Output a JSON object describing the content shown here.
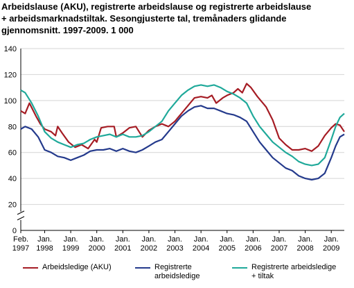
{
  "chart_data": {
    "type": "line",
    "title_lines": [
      "Arbeidslause (AKU), registrerte arbeidslause og registrerte arbeidslause",
      "+ arbeidsmarknadstiltak. Sesongjusterte tal, tremånaders glidande",
      "gjennomsnitt. 1997-2009. 1 000"
    ],
    "ylim": [
      0,
      140
    ],
    "y_ticks": [
      0,
      20,
      40,
      60,
      80,
      100,
      120,
      140
    ],
    "x_range": [
      "1997-02",
      "2009-07"
    ],
    "x_ticks": [
      {
        "line1": "Feb.",
        "line2": "1997",
        "x": "1997-02"
      },
      {
        "line1": "Jan.",
        "line2": "1998",
        "x": "1998-01"
      },
      {
        "line1": "Jan.",
        "line2": "1999",
        "x": "1999-01"
      },
      {
        "line1": "Jan.",
        "line2": "2000",
        "x": "2000-01"
      },
      {
        "line1": "Jan.",
        "line2": "2001",
        "x": "2001-01"
      },
      {
        "line1": "Jan.",
        "line2": "2002",
        "x": "2002-01"
      },
      {
        "line1": "Jan.",
        "line2": "2003",
        "x": "2003-01"
      },
      {
        "line1": "Jan.",
        "line2": "2004",
        "x": "2004-01"
      },
      {
        "line1": "Jan.",
        "line2": "2005",
        "x": "2005-01"
      },
      {
        "line1": "Jan.",
        "line2": "2006",
        "x": "2006-01"
      },
      {
        "line1": "Jan.",
        "line2": "2007",
        "x": "2007-01"
      },
      {
        "line1": "Jan.",
        "line2": "2008",
        "x": "2008-01"
      },
      {
        "line1": "Jan.",
        "line2": "2009",
        "x": "2009-01"
      }
    ],
    "grid": "horizontal",
    "axis_break": true,
    "legend_position": "bottom",
    "series": [
      {
        "name": "Arbeidsledige (AKU)",
        "color": "#a51c24",
        "points": [
          [
            "1997-02",
            92
          ],
          [
            "1997-04",
            90
          ],
          [
            "1997-06",
            98
          ],
          [
            "1997-09",
            88
          ],
          [
            "1997-11",
            82
          ],
          [
            "1998-01",
            78
          ],
          [
            "1998-04",
            76
          ],
          [
            "1998-06",
            73
          ],
          [
            "1998-07",
            80
          ],
          [
            "1998-09",
            75
          ],
          [
            "1998-12",
            68
          ],
          [
            "1999-03",
            64
          ],
          [
            "1999-06",
            66
          ],
          [
            "1999-09",
            63
          ],
          [
            "1999-12",
            70
          ],
          [
            "2000-01",
            68
          ],
          [
            "2000-03",
            79
          ],
          [
            "2000-06",
            80
          ],
          [
            "2000-09",
            80
          ],
          [
            "2000-10",
            72
          ],
          [
            "2001-01",
            75
          ],
          [
            "2001-04",
            79
          ],
          [
            "2001-07",
            80
          ],
          [
            "2001-10",
            72
          ],
          [
            "2002-01",
            77
          ],
          [
            "2002-04",
            80
          ],
          [
            "2002-07",
            82
          ],
          [
            "2002-10",
            80
          ],
          [
            "2003-01",
            84
          ],
          [
            "2003-04",
            90
          ],
          [
            "2003-07",
            96
          ],
          [
            "2003-10",
            102
          ],
          [
            "2004-01",
            103
          ],
          [
            "2004-04",
            102
          ],
          [
            "2004-06",
            104
          ],
          [
            "2004-08",
            98
          ],
          [
            "2004-11",
            102
          ],
          [
            "2005-01",
            104
          ],
          [
            "2005-04",
            106
          ],
          [
            "2005-06",
            109
          ],
          [
            "2005-08",
            106
          ],
          [
            "2005-10",
            113
          ],
          [
            "2005-12",
            110
          ],
          [
            "2006-03",
            103
          ],
          [
            "2006-07",
            95
          ],
          [
            "2006-10",
            85
          ],
          [
            "2007-01",
            71
          ],
          [
            "2007-04",
            66
          ],
          [
            "2007-07",
            62
          ],
          [
            "2007-10",
            62
          ],
          [
            "2008-01",
            63
          ],
          [
            "2008-04",
            61
          ],
          [
            "2008-07",
            65
          ],
          [
            "2008-10",
            73
          ],
          [
            "2009-01",
            79
          ],
          [
            "2009-03",
            82
          ],
          [
            "2009-05",
            81
          ],
          [
            "2009-07",
            76
          ]
        ]
      },
      {
        "name": "Registrerte arbeidsledige",
        "color": "#243a8c",
        "points": [
          [
            "1997-02",
            78
          ],
          [
            "1997-04",
            80
          ],
          [
            "1997-07",
            78
          ],
          [
            "1997-10",
            72
          ],
          [
            "1998-01",
            62
          ],
          [
            "1998-04",
            60
          ],
          [
            "1998-07",
            57
          ],
          [
            "1998-10",
            56
          ],
          [
            "1999-01",
            54
          ],
          [
            "1999-04",
            56
          ],
          [
            "1999-07",
            58
          ],
          [
            "1999-10",
            61
          ],
          [
            "2000-01",
            62
          ],
          [
            "2000-04",
            62
          ],
          [
            "2000-07",
            63
          ],
          [
            "2000-10",
            61
          ],
          [
            "2001-01",
            63
          ],
          [
            "2001-04",
            61
          ],
          [
            "2001-07",
            60
          ],
          [
            "2001-10",
            62
          ],
          [
            "2002-01",
            65
          ],
          [
            "2002-04",
            68
          ],
          [
            "2002-07",
            70
          ],
          [
            "2002-10",
            76
          ],
          [
            "2003-01",
            82
          ],
          [
            "2003-04",
            88
          ],
          [
            "2003-07",
            92
          ],
          [
            "2003-10",
            95
          ],
          [
            "2004-01",
            96
          ],
          [
            "2004-04",
            94
          ],
          [
            "2004-07",
            94
          ],
          [
            "2004-10",
            92
          ],
          [
            "2005-01",
            90
          ],
          [
            "2005-04",
            89
          ],
          [
            "2005-07",
            87
          ],
          [
            "2005-10",
            84
          ],
          [
            "2006-01",
            76
          ],
          [
            "2006-04",
            68
          ],
          [
            "2006-07",
            62
          ],
          [
            "2006-10",
            56
          ],
          [
            "2007-01",
            52
          ],
          [
            "2007-04",
            48
          ],
          [
            "2007-07",
            46
          ],
          [
            "2007-10",
            42
          ],
          [
            "2008-01",
            40
          ],
          [
            "2008-04",
            39
          ],
          [
            "2008-07",
            40
          ],
          [
            "2008-10",
            44
          ],
          [
            "2009-01",
            56
          ],
          [
            "2009-03",
            65
          ],
          [
            "2009-05",
            72
          ],
          [
            "2009-07",
            74
          ]
        ]
      },
      {
        "name": "Registrerte arbeidsledige + tiltak",
        "color": "#1fa99a",
        "points": [
          [
            "1997-02",
            108
          ],
          [
            "1997-04",
            106
          ],
          [
            "1997-07",
            98
          ],
          [
            "1997-10",
            88
          ],
          [
            "1998-01",
            76
          ],
          [
            "1998-04",
            71
          ],
          [
            "1998-07",
            68
          ],
          [
            "1998-10",
            66
          ],
          [
            "1999-01",
            64
          ],
          [
            "1999-04",
            66
          ],
          [
            "1999-07",
            67
          ],
          [
            "1999-10",
            70
          ],
          [
            "2000-01",
            72
          ],
          [
            "2000-04",
            73
          ],
          [
            "2000-07",
            74
          ],
          [
            "2000-10",
            72
          ],
          [
            "2001-01",
            74
          ],
          [
            "2001-04",
            72
          ],
          [
            "2001-07",
            72
          ],
          [
            "2001-10",
            73
          ],
          [
            "2002-01",
            76
          ],
          [
            "2002-04",
            80
          ],
          [
            "2002-07",
            84
          ],
          [
            "2002-10",
            92
          ],
          [
            "2003-01",
            98
          ],
          [
            "2003-04",
            104
          ],
          [
            "2003-07",
            108
          ],
          [
            "2003-10",
            111
          ],
          [
            "2004-01",
            112
          ],
          [
            "2004-04",
            111
          ],
          [
            "2004-07",
            112
          ],
          [
            "2004-10",
            110
          ],
          [
            "2005-01",
            107
          ],
          [
            "2005-04",
            105
          ],
          [
            "2005-07",
            102
          ],
          [
            "2005-10",
            98
          ],
          [
            "2006-01",
            88
          ],
          [
            "2006-04",
            80
          ],
          [
            "2006-07",
            74
          ],
          [
            "2006-10",
            68
          ],
          [
            "2007-01",
            64
          ],
          [
            "2007-04",
            60
          ],
          [
            "2007-07",
            57
          ],
          [
            "2007-10",
            53
          ],
          [
            "2008-01",
            51
          ],
          [
            "2008-04",
            50
          ],
          [
            "2008-07",
            51
          ],
          [
            "2008-10",
            56
          ],
          [
            "2009-01",
            70
          ],
          [
            "2009-03",
            80
          ],
          [
            "2009-05",
            87
          ],
          [
            "2009-07",
            90
          ]
        ]
      }
    ]
  }
}
